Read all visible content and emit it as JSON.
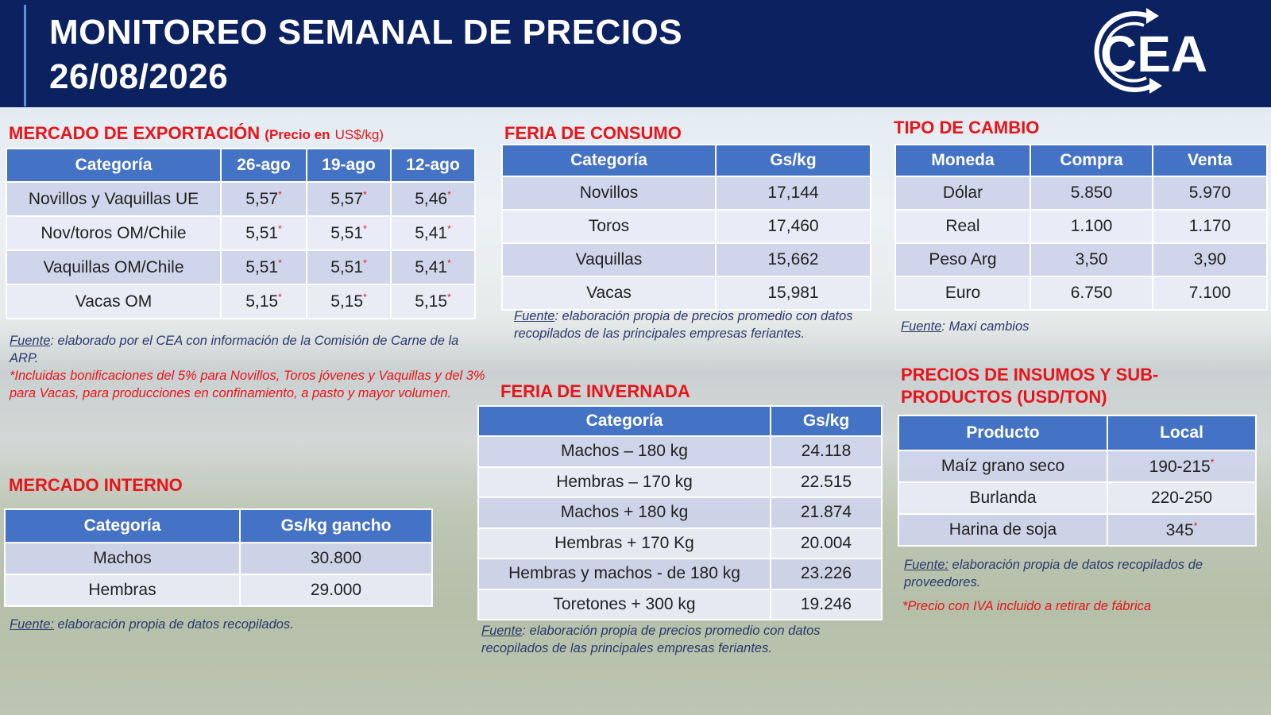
{
  "header": {
    "title": "MONITOREO SEMANAL DE PRECIOS",
    "date": "26/08/2026",
    "logo": "CEA"
  },
  "export_market": {
    "title": "MERCADO DE EXPORTACIÓN",
    "unit_prefix": "(Precio en",
    "unit": "US$/kg)",
    "table": {
      "columns": [
        "Categoría",
        "26-ago",
        "19-ago",
        "12-ago"
      ],
      "rows": [
        [
          "Novillos y Vaquillas UE",
          {
            "text": "5,57",
            "note": "*"
          },
          {
            "text": "5,57",
            "note": "*"
          },
          {
            "text": "5,46",
            "note": "*"
          }
        ],
        [
          "Nov/toros OM/Chile",
          {
            "text": "5,51",
            "note": "*"
          },
          {
            "text": "5,51",
            "note": "*"
          },
          {
            "text": "5,41",
            "note": "*"
          }
        ],
        [
          "Vaquillas OM/Chile",
          {
            "text": "5,51",
            "note": "*"
          },
          {
            "text": "5,51",
            "note": "*"
          },
          {
            "text": "5,41",
            "note": "*"
          }
        ],
        [
          "Vacas OM",
          {
            "text": "5,15",
            "note": "*"
          },
          {
            "text": "5,15",
            "note": "*"
          },
          {
            "text": "5,15",
            "note": "*"
          }
        ]
      ]
    },
    "source": {
      "label": "Fuente",
      "text": ": elaborado por el CEA con información de la Comisión de Carne de la ARP."
    },
    "note": "*Incluidas bonificaciones del 5% para Novillos, Toros jóvenes y Vaquillas y del 3% para Vacas, para producciones en confinamiento, a pasto y mayor volumen."
  },
  "consumption_fair": {
    "title": "FERIA DE CONSUMO",
    "table": {
      "columns": [
        "Categoría",
        "Gs/kg"
      ],
      "rows": [
        [
          "Novillos",
          "17,144"
        ],
        [
          "Toros",
          "17,460"
        ],
        [
          "Vaquillas",
          "15,662"
        ],
        [
          "Vacas",
          "15,981"
        ]
      ]
    },
    "source": {
      "label": "Fuente",
      "text": ": elaboración propia de precios promedio con datos recopilados de las principales empresas feriantes."
    }
  },
  "exchange_rate": {
    "title": "TIPO DE CAMBIO",
    "table": {
      "columns": [
        "Moneda",
        "Compra",
        "Venta"
      ],
      "rows": [
        [
          "Dólar",
          "5.850",
          "5.970"
        ],
        [
          "Real",
          "1.100",
          "1.170"
        ],
        [
          "Peso Arg",
          "3,50",
          "3,90"
        ],
        [
          "Euro",
          "6.750",
          "7.100"
        ]
      ]
    },
    "source": {
      "label": "Fuente",
      "text": ": Maxi cambios"
    }
  },
  "domestic_market": {
    "title": "MERCADO INTERNO",
    "table": {
      "columns": [
        "Categoría",
        "Gs/kg gancho"
      ],
      "rows": [
        [
          "Machos",
          "30.800"
        ],
        [
          "Hembras",
          "29.000"
        ]
      ]
    },
    "source": {
      "label": "Fuente:",
      "text": " elaboración propia de datos recopilados."
    }
  },
  "wintering_fair": {
    "title": "FERIA DE INVERNADA",
    "table": {
      "columns": [
        "Categoría",
        "Gs/kg"
      ],
      "rows": [
        [
          "Machos – 180 kg",
          "24.118"
        ],
        [
          "Hembras – 170 kg",
          "22.515"
        ],
        [
          "Machos + 180 kg",
          "21.874"
        ],
        [
          "Hembras + 170 Kg",
          "20.004"
        ],
        [
          "Hembras y machos - de 180 kg",
          "23.226"
        ],
        [
          "Toretones + 300 kg",
          "19.246"
        ]
      ]
    },
    "source": {
      "label": "Fuente",
      "text": ": elaboración propia de precios promedio con datos recopilados de las principales empresas feriantes."
    }
  },
  "inputs": {
    "title": "PRECIOS DE INSUMOS Y SUB-PRODUCTOS (USD/TON)",
    "table": {
      "columns": [
        "Producto",
        "Local"
      ],
      "rows": [
        [
          "Maíz grano seco",
          {
            "text": "190-215",
            "note": "*"
          }
        ],
        [
          "Burlanda",
          "220-250"
        ],
        [
          "Harina de soja",
          {
            "text": "345",
            "note": "*"
          }
        ]
      ]
    },
    "source": {
      "label": "Fuente:",
      "text": " elaboración propia de datos recopilados de proveedores."
    },
    "note": "*Precio con IVA incluido a retirar de fábrica"
  }
}
